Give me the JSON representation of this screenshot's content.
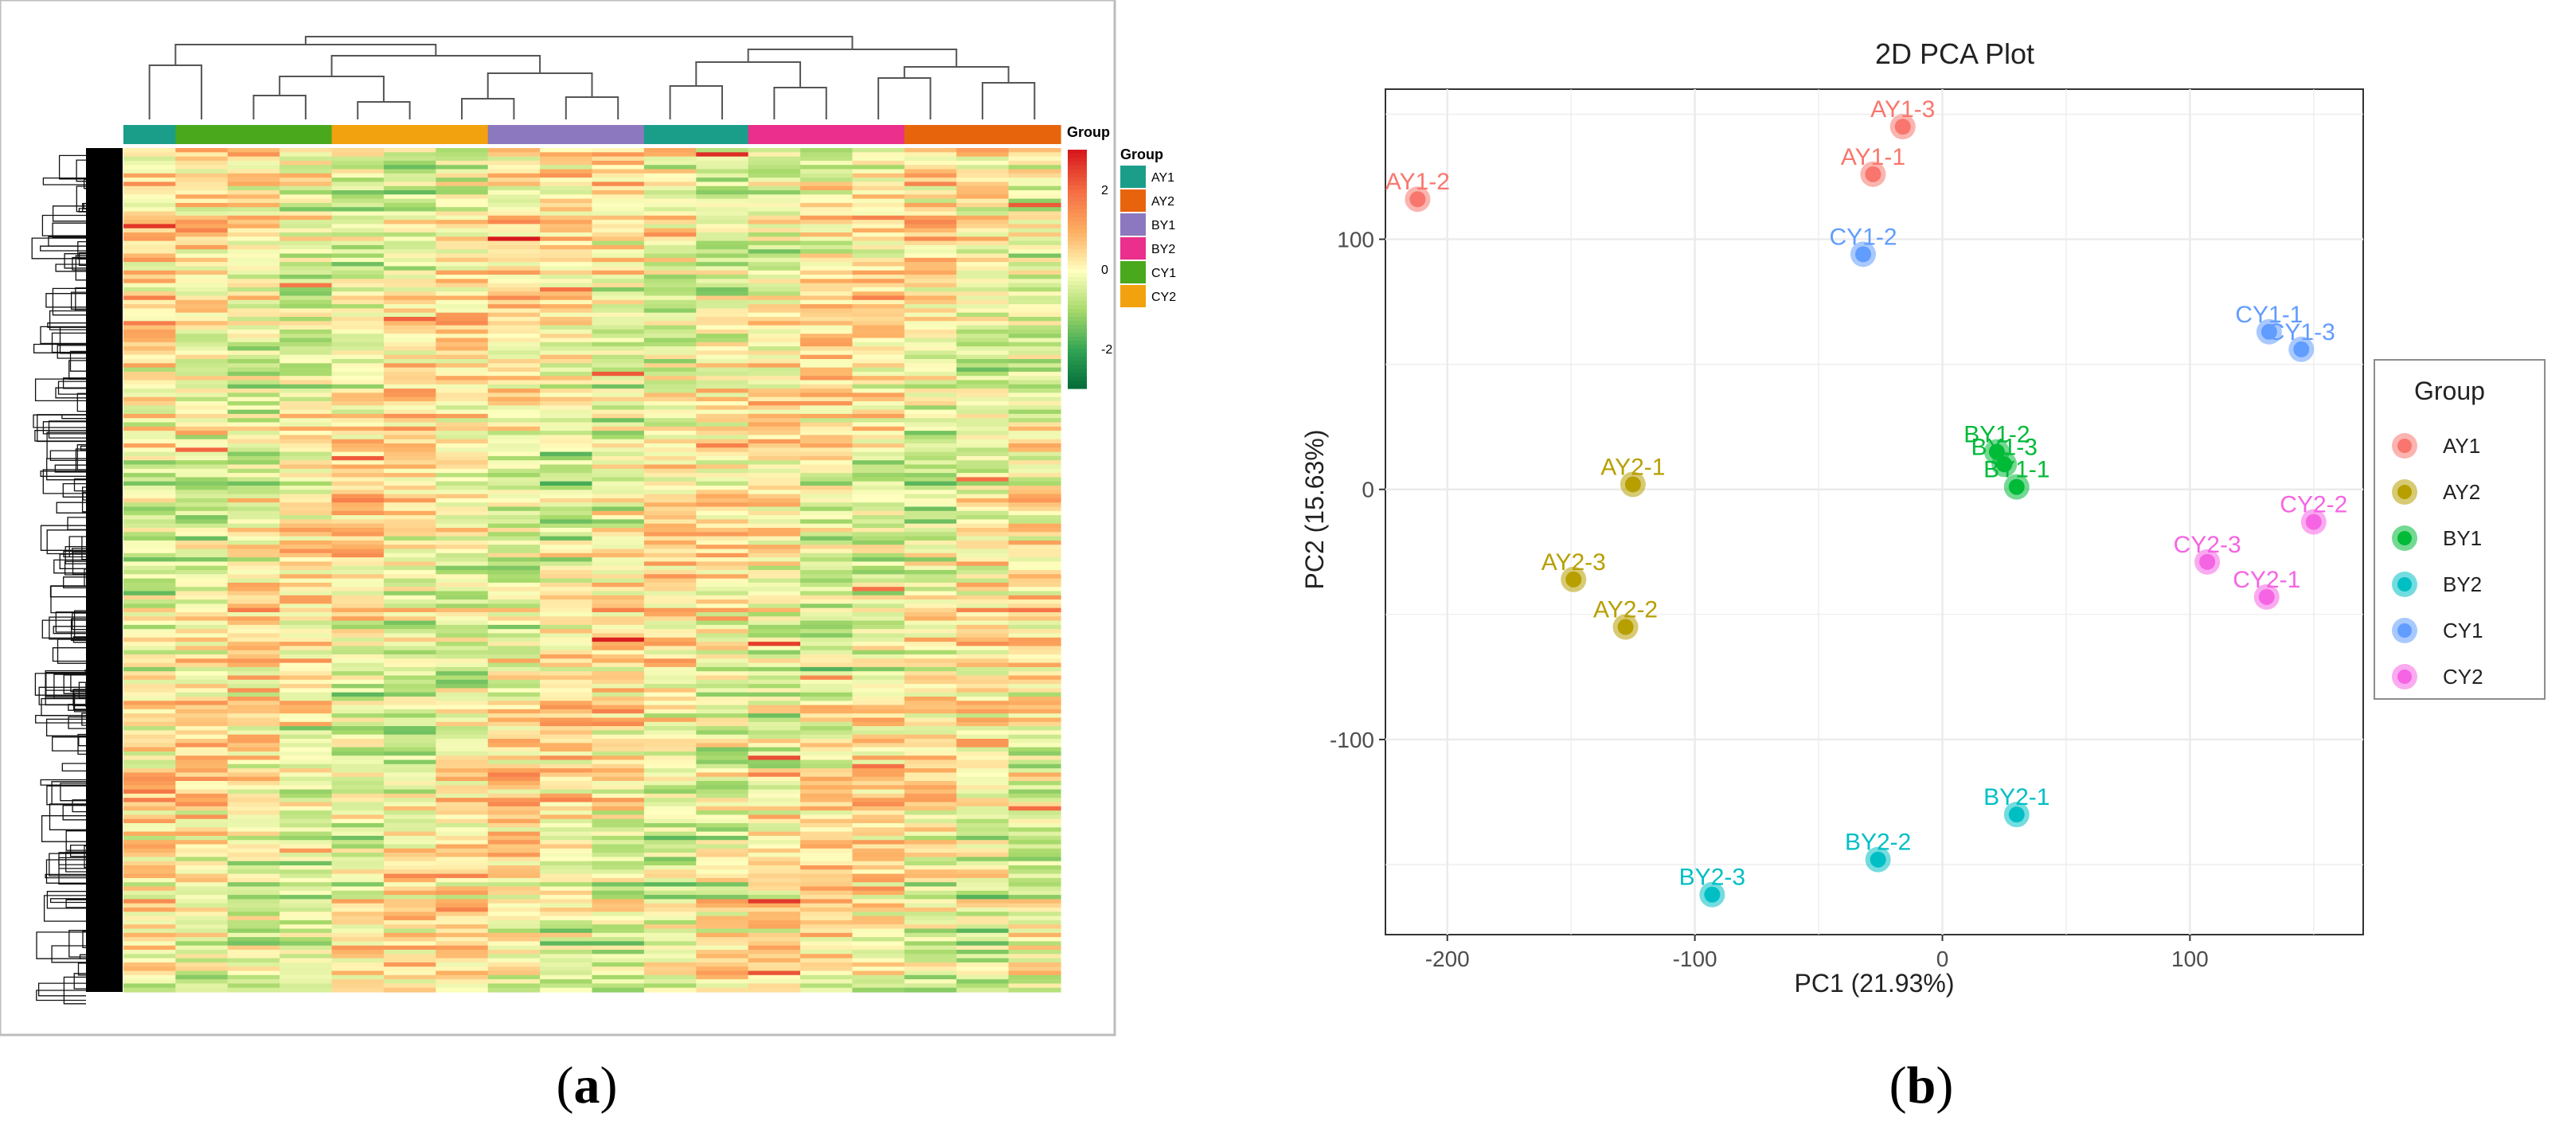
{
  "panel_labels": {
    "a": "a",
    "b": "b"
  },
  "colors": {
    "AY1": "#F8766D",
    "AY2": "#B79F00",
    "BY1": "#00BA38",
    "BY2": "#00BFC4",
    "CY1": "#619CFF",
    "CY2": "#F564E3"
  },
  "chart_data": [
    {
      "type": "heatmap",
      "legend_title": "Group",
      "groups": [
        {
          "name": "AY1",
          "color": "#1a9e8a"
        },
        {
          "name": "AY2",
          "color": "#e8640c"
        },
        {
          "name": "BY1",
          "color": "#8b78be"
        },
        {
          "name": "BY2",
          "color": "#ea2f8c"
        },
        {
          "name": "CY1",
          "color": "#4aa81c"
        },
        {
          "name": "CY2",
          "color": "#f2a20e"
        }
      ],
      "column_groups": [
        "AY1",
        "CY1",
        "CY1",
        "CY1",
        "CY2",
        "CY2",
        "CY2",
        "BY1",
        "BY1",
        "BY1",
        "AY1",
        "AY1",
        "BY2",
        "BY2",
        "BY2",
        "AY2",
        "AY2",
        "AY2"
      ],
      "color_scale": {
        "ticks": [
          2,
          0,
          -2
        ],
        "range": [
          -3,
          3
        ],
        "colors": [
          "#006837",
          "#31a354",
          "#a6d96a",
          "#ffffbf",
          "#fdae61",
          "#f46d43",
          "#d7191c"
        ]
      },
      "row_dendrogram": true,
      "column_dendrogram": true
    },
    {
      "type": "scatter",
      "title": "2D PCA Plot",
      "xlabel": "PC1 (21.93%)",
      "ylabel": "PC2 (15.63%)",
      "xlim": [
        -225,
        170
      ],
      "ylim": [
        -178,
        160
      ],
      "xticks": [
        -200,
        -100,
        0,
        100
      ],
      "yticks": [
        100,
        0,
        -100
      ],
      "grid": true,
      "legend_title": "Group",
      "legend_position": "right",
      "series": [
        {
          "name": "AY1",
          "points": [
            {
              "label": "AY1-3",
              "x": -16,
              "y": 145
            },
            {
              "label": "AY1-1",
              "x": -28,
              "y": 126
            },
            {
              "label": "AY1-2",
              "x": -212,
              "y": 116
            }
          ]
        },
        {
          "name": "AY2",
          "points": [
            {
              "label": "AY2-1",
              "x": -125,
              "y": 2
            },
            {
              "label": "AY2-3",
              "x": -149,
              "y": -36
            },
            {
              "label": "AY2-2",
              "x": -128,
              "y": -55
            }
          ]
        },
        {
          "name": "BY1",
          "points": [
            {
              "label": "BY1-2",
              "x": 22,
              "y": 15
            },
            {
              "label": "BY1-3",
              "x": 25,
              "y": 10
            },
            {
              "label": "BY1-1",
              "x": 30,
              "y": 1
            }
          ]
        },
        {
          "name": "BY2",
          "points": [
            {
              "label": "BY2-1",
              "x": 30,
              "y": -130
            },
            {
              "label": "BY2-2",
              "x": -26,
              "y": -148
            },
            {
              "label": "BY2-3",
              "x": -93,
              "y": -162
            }
          ]
        },
        {
          "name": "CY1",
          "points": [
            {
              "label": "CY1-2",
              "x": -32,
              "y": 94
            },
            {
              "label": "CY1-1",
              "x": 132,
              "y": 63
            },
            {
              "label": "CY1-3",
              "x": 145,
              "y": 56
            }
          ]
        },
        {
          "name": "CY2",
          "points": [
            {
              "label": "CY2-2",
              "x": 150,
              "y": -13
            },
            {
              "label": "CY2-3",
              "x": 107,
              "y": -29
            },
            {
              "label": "CY2-1",
              "x": 131,
              "y": -43
            }
          ]
        }
      ]
    }
  ]
}
